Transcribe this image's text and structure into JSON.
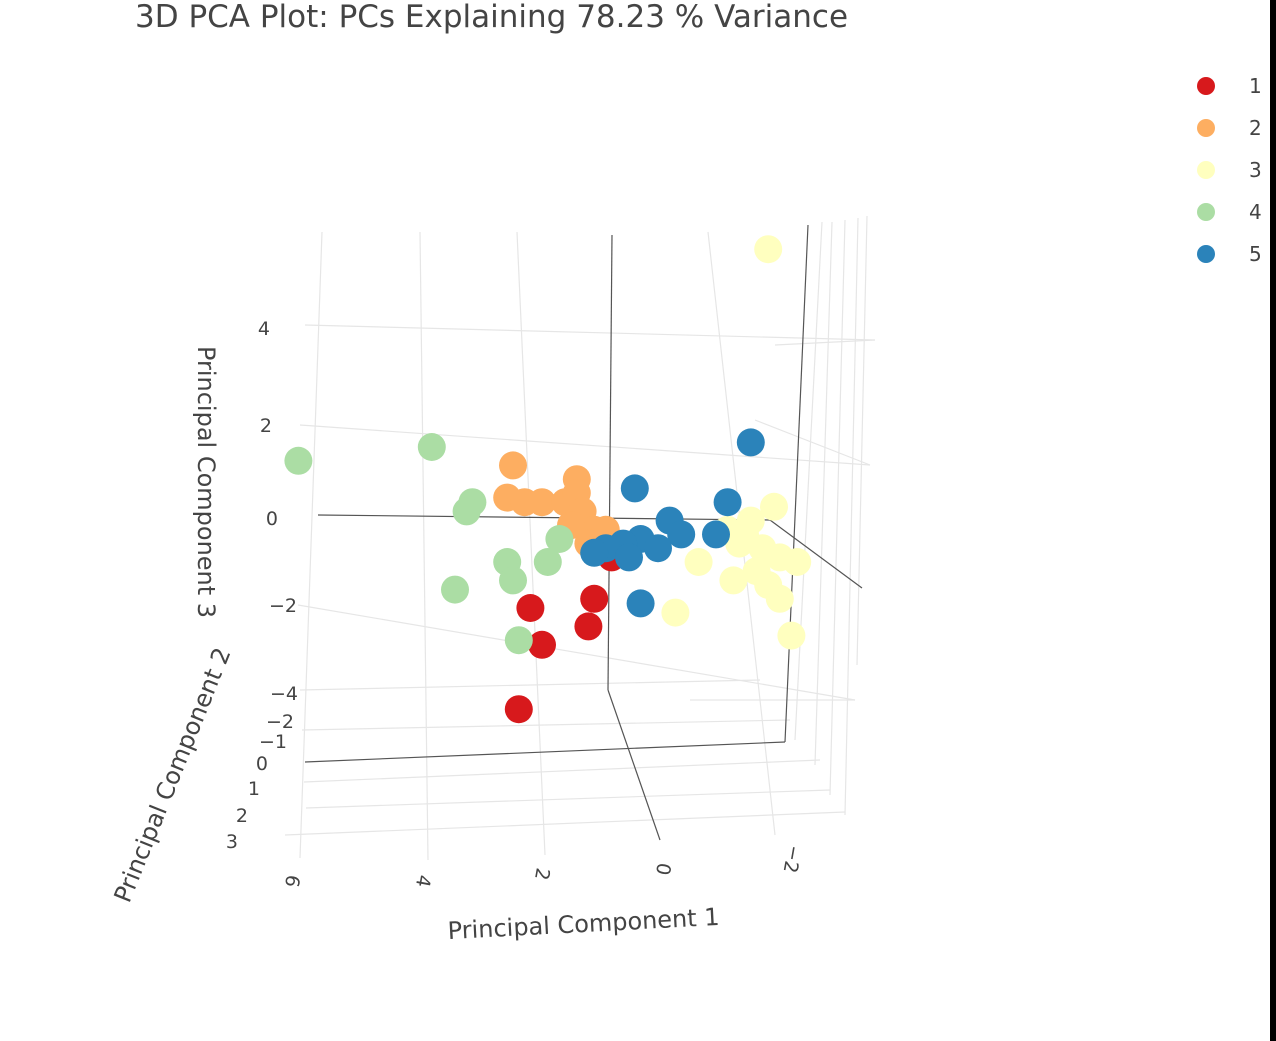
{
  "chart_data": {
    "type": "scatter",
    "projection": "3d",
    "title": "3D PCA Plot: PCs Explaining 78.23 % Variance",
    "xlabel": "Principal Component 1",
    "ylabel": "Principal Component 2",
    "zlabel": "Principal Component 3",
    "x_ticks": [
      "6",
      "4",
      "2",
      "0",
      "−2"
    ],
    "y_ticks": [
      "−2",
      "−1",
      "0",
      "1",
      "2",
      "3"
    ],
    "z_ticks": [
      "4",
      "2",
      "0",
      "−2",
      "−4"
    ],
    "xlim": [
      -3,
      6.5
    ],
    "zlim": [
      -4.5,
      5
    ],
    "grid": true,
    "legend_position": "top-right",
    "series": [
      {
        "name": "1",
        "color": "#d7191c",
        "points": [
          {
            "x": 2.2,
            "z": -2.0
          },
          {
            "x": 1.1,
            "z": -1.8
          },
          {
            "x": 1.2,
            "z": -2.4
          },
          {
            "x": 2.0,
            "z": -2.8
          },
          {
            "x": 2.4,
            "z": -4.2
          },
          {
            "x": 0.8,
            "z": -0.9
          }
        ]
      },
      {
        "name": "2",
        "color": "#fdae61",
        "points": [
          {
            "x": 2.5,
            "z": 1.1
          },
          {
            "x": 1.4,
            "z": 0.8
          },
          {
            "x": 2.6,
            "z": 0.4
          },
          {
            "x": 2.3,
            "z": 0.3
          },
          {
            "x": 2.0,
            "z": 0.3
          },
          {
            "x": 1.6,
            "z": 0.3
          },
          {
            "x": 1.4,
            "z": 0.5
          },
          {
            "x": 1.3,
            "z": 0.1
          },
          {
            "x": 1.1,
            "z": -0.3
          },
          {
            "x": 0.9,
            "z": -0.3
          },
          {
            "x": 1.2,
            "z": -0.6
          },
          {
            "x": 1.5,
            "z": -0.2
          }
        ]
      },
      {
        "name": "3",
        "color": "#ffffbf",
        "points": [
          {
            "x": -1.9,
            "z": 5.8
          },
          {
            "x": -2.0,
            "z": 0.2
          },
          {
            "x": -1.6,
            "z": -0.1
          },
          {
            "x": -1.2,
            "z": -0.3
          },
          {
            "x": -1.4,
            "z": -0.6
          },
          {
            "x": -1.8,
            "z": -0.7
          },
          {
            "x": -2.1,
            "z": -0.9
          },
          {
            "x": -2.4,
            "z": -1.0
          },
          {
            "x": -0.7,
            "z": -1.0
          },
          {
            "x": -1.3,
            "z": -1.4
          },
          {
            "x": -1.9,
            "z": -1.5
          },
          {
            "x": -2.1,
            "z": -1.8
          },
          {
            "x": -0.3,
            "z": -2.1
          },
          {
            "x": -2.3,
            "z": -2.6
          },
          {
            "x": -1.5,
            "z": -0.4
          },
          {
            "x": -1.7,
            "z": -1.2
          }
        ]
      },
      {
        "name": "4",
        "color": "#abdda4",
        "points": [
          {
            "x": 6.2,
            "z": 1.2
          },
          {
            "x": 3.9,
            "z": 1.5
          },
          {
            "x": 3.2,
            "z": 0.3
          },
          {
            "x": 3.3,
            "z": 0.1
          },
          {
            "x": 2.6,
            "z": -1.0
          },
          {
            "x": 2.5,
            "z": -1.4
          },
          {
            "x": 3.5,
            "z": -1.6
          },
          {
            "x": 1.9,
            "z": -1.0
          },
          {
            "x": 1.7,
            "z": -0.5
          },
          {
            "x": 2.4,
            "z": -2.7
          }
        ]
      },
      {
        "name": "5",
        "color": "#2b83ba",
        "points": [
          {
            "x": -1.6,
            "z": 1.6
          },
          {
            "x": 0.4,
            "z": 0.6
          },
          {
            "x": -1.2,
            "z": 0.3
          },
          {
            "x": -0.2,
            "z": -0.1
          },
          {
            "x": -0.4,
            "z": -0.4
          },
          {
            "x": 0.3,
            "z": -0.5
          },
          {
            "x": 0.6,
            "z": -0.6
          },
          {
            "x": 0.9,
            "z": -0.7
          },
          {
            "x": 1.1,
            "z": -0.8
          },
          {
            "x": 0.5,
            "z": -0.9
          },
          {
            "x": 0.0,
            "z": -0.7
          },
          {
            "x": -1.0,
            "z": -0.4
          },
          {
            "x": 0.3,
            "z": -1.9
          }
        ]
      }
    ]
  }
}
